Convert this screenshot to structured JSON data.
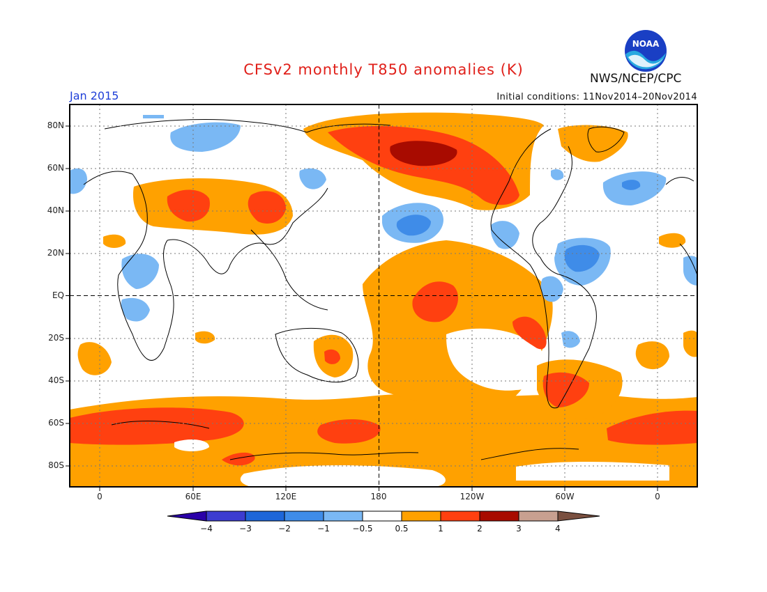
{
  "title": "CFSv2 monthly T850 anomalies (K)",
  "org": "NWS/NCEP/CPC",
  "logo_text": "NOAA",
  "period": "Jan 2015",
  "initial_conditions": "Initial conditions: 11Nov2014–20Nov2014",
  "map": {
    "lon_ticks": [
      "0",
      "60E",
      "120E",
      "180",
      "120W",
      "60W",
      "0"
    ],
    "lat_ticks": [
      "80N",
      "60N",
      "40N",
      "20N",
      "EQ",
      "20S",
      "40S",
      "60S",
      "80S"
    ],
    "grid": "dotted",
    "reference_lines": [
      "EQ",
      "180"
    ],
    "projection": "cylindrical equidistant, 340°W to 20°E centered on 180"
  },
  "colorbar": {
    "labels": [
      "−4",
      "−3",
      "−2",
      "−1",
      "−0.5",
      "0.5",
      "1",
      "2",
      "3",
      "4"
    ],
    "colors": [
      "#2a00a8",
      "#3c3cd0",
      "#1e66d8",
      "#3f8ce8",
      "#7ab8f4",
      "#ffffff",
      "#ffa100",
      "#ff4010",
      "#a80b00",
      "#c8a090",
      "#7a5040"
    ]
  },
  "colors": {
    "title": "#e0201a",
    "period": "#1f3fd8",
    "warm_light": "#ffa100",
    "warm_mid": "#ff4010",
    "warm_dark": "#a80b00",
    "cool_light": "#7ab8f4",
    "cool_mid": "#3f8ce8"
  }
}
